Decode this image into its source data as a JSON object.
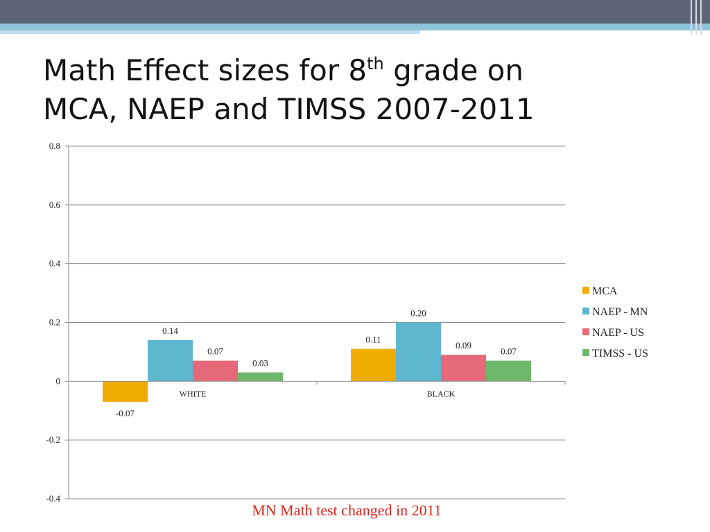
{
  "slide": {
    "title_line1_pre": "Math Effect sizes for 8",
    "title_sup": "th",
    "title_line1_post": " grade on",
    "title_line2": "MCA, NAEP and TIMSS 2007-2011",
    "note": "MN Math test changed in 2011"
  },
  "chart_data": {
    "type": "bar",
    "categories": [
      "WHITE",
      "BLACK"
    ],
    "series": [
      {
        "name": "MCA",
        "values": [
          -0.07,
          0.11
        ],
        "labels": [
          "-0.07",
          "0.11"
        ],
        "color": "#f0ab00"
      },
      {
        "name": "NAEP - MN",
        "values": [
          0.14,
          0.2
        ],
        "labels": [
          "0.14",
          "0.20"
        ],
        "color": "#5eb6cf"
      },
      {
        "name": "NAEP - US",
        "values": [
          0.07,
          0.09
        ],
        "labels": [
          "0.07",
          "0.09"
        ],
        "color": "#e6697a"
      },
      {
        "name": "TIMSS - US",
        "values": [
          0.03,
          0.07
        ],
        "labels": [
          "0.03",
          "0.07"
        ],
        "color": "#6db86b"
      }
    ],
    "ylim": [
      -0.4,
      0.8
    ],
    "yticks": [
      "0.8",
      "0.6",
      "0.4",
      "0.2",
      "0",
      "-0.2",
      "-0.4"
    ],
    "ytick_values": [
      0.8,
      0.6,
      0.4,
      0.2,
      0,
      -0.2,
      -0.4
    ],
    "grid": true,
    "legend": "right"
  }
}
